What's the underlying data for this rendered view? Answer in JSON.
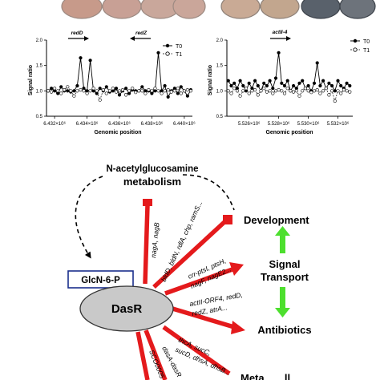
{
  "plates_left": {
    "colors": [
      "#c79a8a",
      "#c8a095",
      "#c9a79b",
      "#caa69a"
    ]
  },
  "plates_right": {
    "colors": [
      "#c9aa95",
      "#c2a68e",
      "#59616b",
      "#6d737b"
    ]
  },
  "chart_data": [
    {
      "type": "line",
      "xlabel": "Genomic position",
      "ylabel": "Signal ratio",
      "x_ticks": [
        "6.432×10⁶",
        "6.434×10⁶",
        "6.436×10⁶",
        "6.438×10⁶",
        "6.440×10⁶"
      ],
      "y_ticks": [
        "0.5",
        "1.0",
        "1.5",
        "2.0"
      ],
      "xlim": [
        6431500,
        6440500
      ],
      "ylim": [
        0.5,
        2.0
      ],
      "gene_labels": [
        "redD",
        "redZ"
      ],
      "legend": [
        "T0",
        "T1"
      ],
      "series": [
        {
          "name": "T0",
          "x": [
            6431600,
            6431800,
            6432000,
            6432200,
            6432400,
            6432600,
            6432800,
            6433000,
            6433200,
            6433400,
            6433600,
            6433800,
            6434000,
            6434200,
            6434400,
            6434600,
            6434800,
            6435000,
            6435200,
            6435400,
            6435600,
            6435800,
            6436000,
            6436200,
            6436400,
            6436600,
            6436800,
            6437000,
            6437200,
            6437400,
            6437600,
            6437800,
            6438000,
            6438200,
            6438400,
            6438600,
            6438800,
            6439000,
            6439200,
            6439400,
            6439600,
            6439800,
            6440000,
            6440200,
            6440400
          ],
          "y": [
            1.0,
            1.05,
            1.0,
            0.95,
            1.08,
            1.0,
            1.0,
            0.98,
            1.0,
            1.1,
            1.65,
            1.05,
            1.0,
            1.6,
            1.0,
            0.95,
            1.05,
            1.0,
            1.08,
            0.98,
            1.0,
            1.05,
            0.92,
            1.0,
            1.05,
            0.95,
            1.02,
            1.0,
            1.0,
            1.08,
            1.0,
            1.0,
            0.95,
            1.0,
            1.75,
            1.0,
            1.1,
            0.88,
            1.0,
            1.05,
            0.95,
            1.08,
            1.0,
            0.9,
            1.02
          ]
        },
        {
          "name": "T1",
          "x": [
            6431600,
            6431800,
            6432000,
            6432200,
            6432400,
            6432600,
            6432800,
            6433000,
            6433200,
            6433400,
            6433600,
            6433800,
            6434000,
            6434200,
            6434400,
            6434600,
            6434800,
            6435000,
            6435200,
            6435400,
            6435600,
            6435800,
            6436000,
            6436200,
            6436400,
            6436600,
            6436800,
            6437000,
            6437200,
            6437400,
            6437600,
            6437800,
            6438000,
            6438200,
            6438400,
            6438600,
            6438800,
            6439000,
            6439200,
            6439400,
            6439600,
            6439800,
            6440000,
            6440200,
            6440400
          ],
          "y": [
            1.0,
            0.98,
            1.05,
            1.0,
            0.95,
            1.02,
            1.08,
            1.0,
            0.9,
            1.0,
            1.02,
            1.0,
            0.95,
            1.0,
            1.05,
            1.0,
            0.82,
            1.02,
            0.95,
            1.0,
            1.05,
            0.98,
            1.0,
            1.02,
            0.92,
            1.0,
            1.05,
            0.97,
            1.0,
            1.0,
            0.95,
            1.02,
            1.0,
            1.05,
            1.0,
            0.95,
            1.0,
            1.02,
            0.98,
            1.0,
            1.05,
            0.95,
            1.0,
            1.02,
            1.0
          ]
        }
      ]
    },
    {
      "type": "line",
      "xlabel": "Genomic position",
      "ylabel": "Signal ratio",
      "x_ticks": [
        "5.526×10⁶",
        "5.528×10⁶",
        "5.530×10⁶",
        "5.532×10⁶"
      ],
      "y_ticks": [
        "0.5",
        "1.0",
        "1.5",
        "2.0"
      ],
      "xlim": [
        5524500,
        5533000
      ],
      "ylim": [
        0.5,
        2.0
      ],
      "gene_labels": [
        "actII-4"
      ],
      "legend": [
        "T0",
        "T1"
      ],
      "series": [
        {
          "name": "T0",
          "x": [
            5524600,
            5524800,
            5525000,
            5525200,
            5525400,
            5525600,
            5525800,
            5526000,
            5526200,
            5526400,
            5526600,
            5526800,
            5527000,
            5527200,
            5527400,
            5527600,
            5527800,
            5528000,
            5528200,
            5528400,
            5528600,
            5528800,
            5529000,
            5529200,
            5529400,
            5529600,
            5529800,
            5530000,
            5530200,
            5530400,
            5530600,
            5530800,
            5531000,
            5531200,
            5531400,
            5531600,
            5531800,
            5532000,
            5532200,
            5532400,
            5532600,
            5532800
          ],
          "y": [
            1.2,
            1.1,
            1.15,
            1.05,
            1.2,
            1.1,
            1.0,
            1.15,
            1.05,
            1.2,
            1.1,
            1.0,
            1.15,
            1.1,
            1.2,
            1.05,
            1.25,
            1.75,
            1.15,
            1.1,
            1.2,
            1.0,
            1.1,
            1.05,
            1.15,
            1.2,
            1.05,
            1.1,
            1.0,
            1.15,
            1.55,
            1.1,
            1.2,
            1.05,
            1.15,
            1.1,
            1.0,
            1.2,
            1.1,
            1.05,
            1.15,
            1.1
          ]
        },
        {
          "name": "T1",
          "x": [
            5524600,
            5524800,
            5525000,
            5525200,
            5525400,
            5525600,
            5525800,
            5526000,
            5526200,
            5526400,
            5526600,
            5526800,
            5527000,
            5527200,
            5527400,
            5527600,
            5527800,
            5528000,
            5528200,
            5528400,
            5528600,
            5528800,
            5529000,
            5529200,
            5529400,
            5529600,
            5529800,
            5530000,
            5530200,
            5530400,
            5530600,
            5530800,
            5531000,
            5531200,
            5531400,
            5531600,
            5531800,
            5532000,
            5532200,
            5532400,
            5532600,
            5532800
          ],
          "y": [
            1.0,
            0.95,
            1.05,
            1.0,
            0.9,
            1.0,
            1.05,
            0.95,
            1.0,
            1.02,
            0.92,
            1.0,
            1.05,
            0.98,
            1.0,
            0.95,
            1.0,
            1.02,
            1.0,
            0.95,
            1.05,
            1.0,
            0.98,
            1.0,
            0.9,
            1.0,
            1.05,
            1.0,
            0.97,
            1.0,
            1.02,
            0.95,
            1.0,
            1.05,
            0.92,
            1.0,
            0.8,
            1.0,
            0.95,
            1.02,
            1.0,
            0.98
          ]
        }
      ]
    }
  ],
  "diagram": {
    "metabolism_line1": "N-acetylglucosamine",
    "metabolism_line2": "metabolism",
    "development": "Development",
    "signal_line1": "Signal",
    "signal_line2": "Transport",
    "antibiotics": "Antibiotics",
    "glcn": "GlcN-6-P",
    "dasr": "DasR",
    "cut_label": "Meta... ...ll...",
    "genes": {
      "nag": "nagA, nagB",
      "dev": "bldD, bldN, rdlA, chp, ramS...",
      "sig1": "crr-ptsI, ptsH,",
      "sig2": "nagF, nagE2...",
      "ant1": "actII-ORF4, redD,",
      "ant2": "redZ, atrA...",
      "met1": "thcA, sucC,",
      "met2": "sucD, dhsA, dhsB...",
      "das": "dasA-dasR",
      "sco": "SCO0005"
    },
    "colors": {
      "red_arrow": "#e41a1c",
      "green_arrow": "#4ddf2e",
      "glcn_border": "#1a2f8c",
      "dasr_fill": "#c9c9c9"
    }
  }
}
